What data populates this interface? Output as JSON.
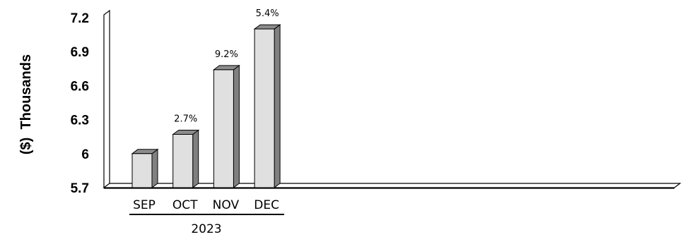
{
  "chart_data": {
    "type": "bar",
    "title": "",
    "xlabel": "",
    "ylabel": "($)  Thousands",
    "group_label": "2023",
    "categories": [
      "SEP",
      "OCT",
      "NOV",
      "DEC"
    ],
    "values": [
      6.0,
      6.17,
      6.74,
      7.1
    ],
    "data_labels": [
      "",
      "2.7%",
      "9.2%",
      "5.4%"
    ],
    "y_ticks": [
      "5.7",
      "6",
      "6.3",
      "6.6",
      "6.9",
      "7.2"
    ],
    "y_tick_values": [
      5.7,
      6.0,
      6.3,
      6.6,
      6.9,
      7.2
    ],
    "ylim": [
      5.7,
      7.2
    ],
    "grid": false,
    "legend": "none",
    "style": "3d",
    "colors": {
      "bar_front": "#e0e0e0",
      "bar_top": "#8c8c8c",
      "bar_side": "#808080",
      "outline": "#000000"
    }
  }
}
